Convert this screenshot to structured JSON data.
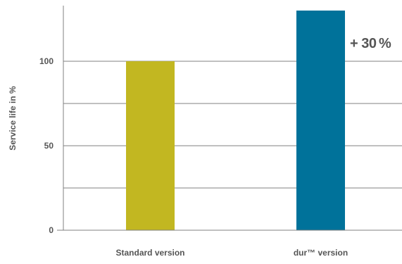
{
  "chart_data": {
    "type": "bar",
    "categories": [
      "Standard version",
      "dur™ version"
    ],
    "values": [
      100,
      130
    ],
    "ylabel": "Service life in %",
    "ylim": [
      0,
      130
    ],
    "yticks": [
      0,
      50,
      100
    ],
    "gridlines": [
      25,
      50,
      75,
      100
    ],
    "annotation": "+ 30 %",
    "colors": {
      "standard": "#C2B721",
      "dur": "#00729A",
      "grid": "#808080",
      "text": "#555555"
    },
    "legend": "none",
    "grid": true
  }
}
